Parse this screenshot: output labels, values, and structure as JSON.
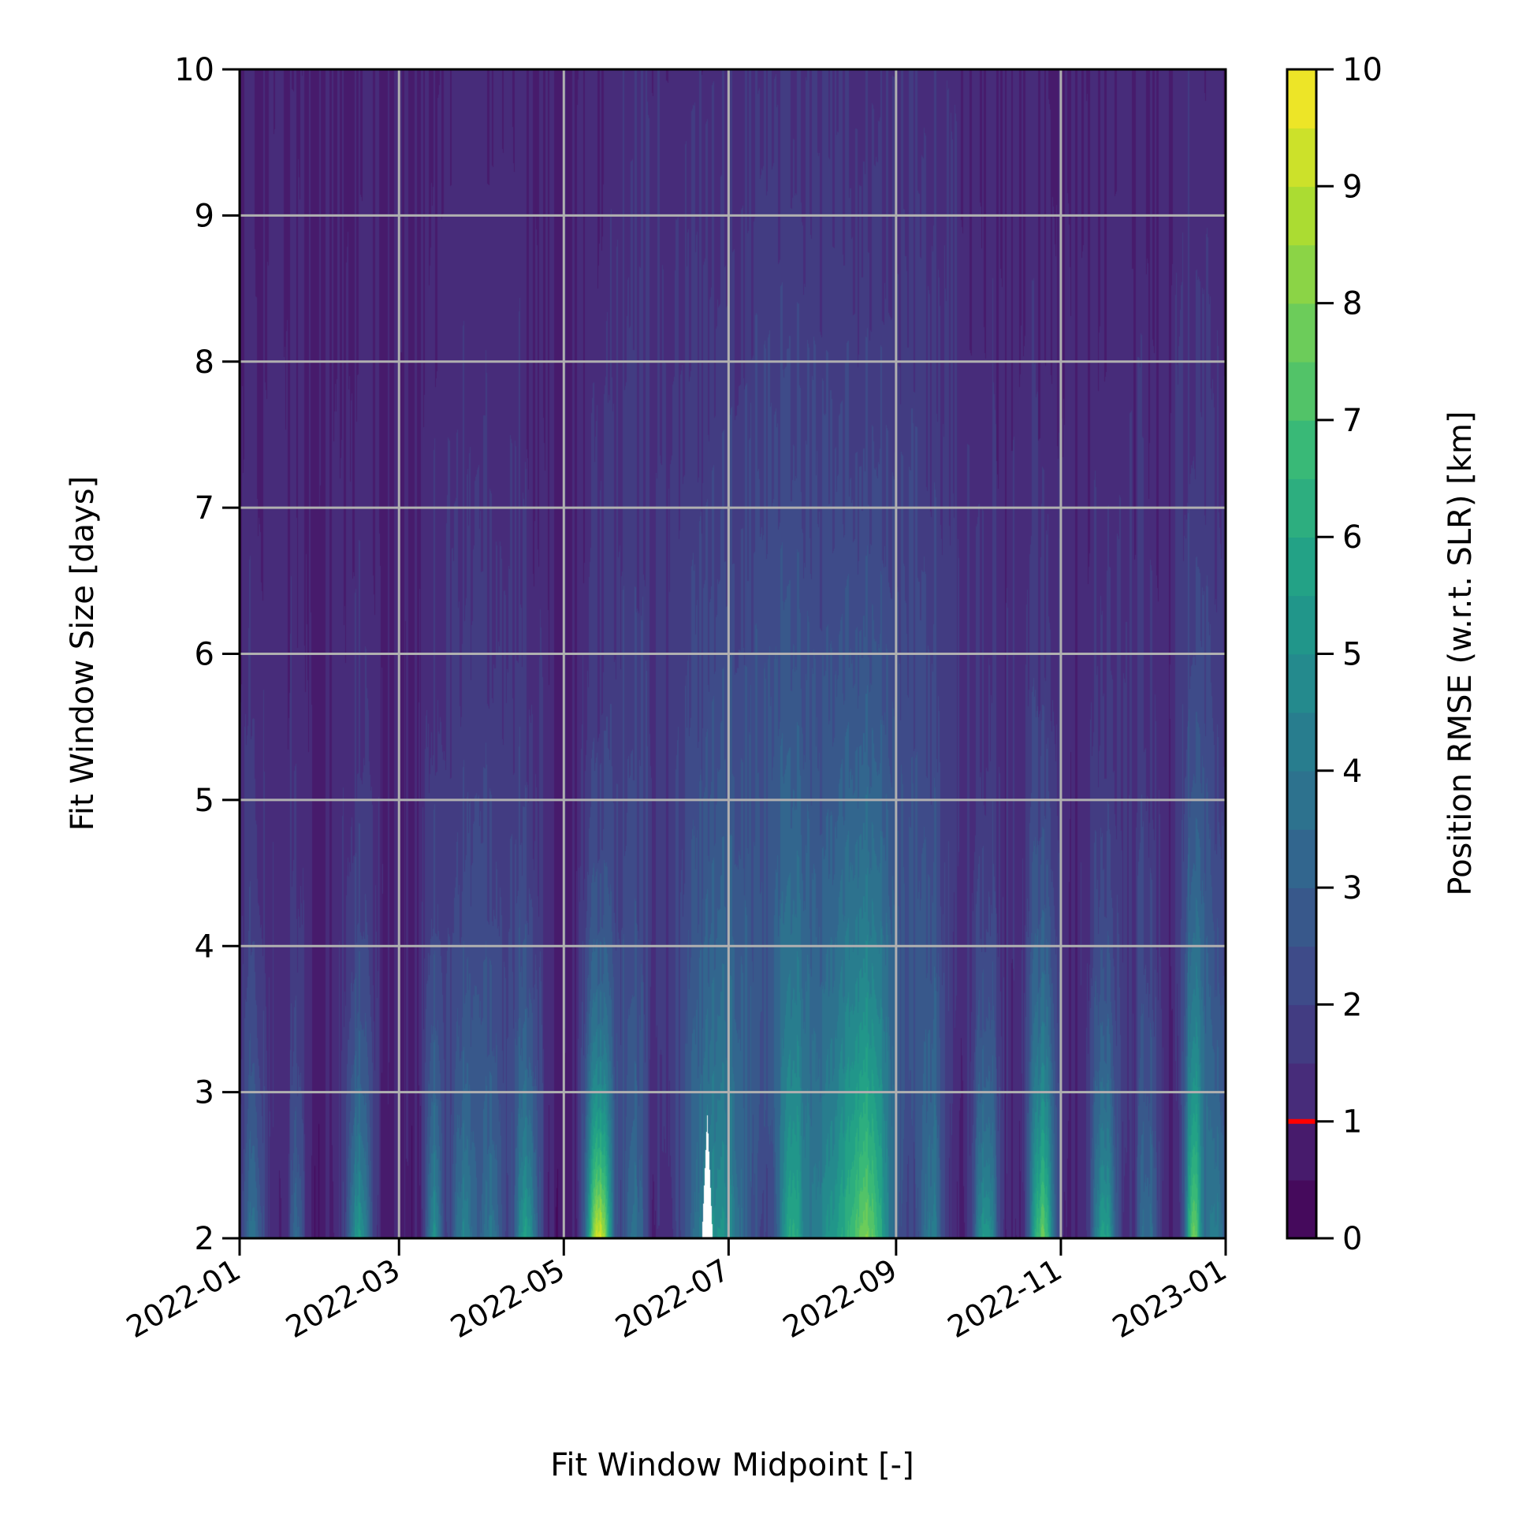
{
  "chart_data": {
    "type": "heatmap",
    "title": "",
    "xlabel": "Fit Window Midpoint [-]",
    "ylabel": "Fit Window Size [days]",
    "x_ticks": [
      "2022-01",
      "2022-03",
      "2022-05",
      "2022-07",
      "2022-09",
      "2022-11",
      "2023-01"
    ],
    "x_range": [
      "2022-01-01",
      "2023-01-01"
    ],
    "y_ticks": [
      "2",
      "3",
      "4",
      "5",
      "6",
      "7",
      "8",
      "9",
      "10"
    ],
    "ylim": [
      2,
      10
    ],
    "grid": true,
    "colorbar": {
      "label": "Position RMSE (w.r.t. SLR) [km]",
      "ticks": [
        "0",
        "1",
        "2",
        "3",
        "4",
        "5",
        "6",
        "7",
        "8",
        "9",
        "10"
      ],
      "range": [
        0,
        10
      ],
      "colormap": "viridis",
      "levels": 20,
      "marker_value": 1.0,
      "marker_color": "#ff0000"
    },
    "background_value": 0.8,
    "stripes": [
      {
        "date": "2022-01-06",
        "peak": 2.8,
        "decay": 1.5,
        "width": 3
      },
      {
        "date": "2022-01-22",
        "peak": 2.6,
        "decay": 1.2,
        "width": 2
      },
      {
        "date": "2022-02-14",
        "peak": 4.5,
        "decay": 1.3,
        "width": 3
      },
      {
        "date": "2022-03-14",
        "peak": 4.2,
        "decay": 1.4,
        "width": 2
      },
      {
        "date": "2022-03-25",
        "peak": 3.6,
        "decay": 1.5,
        "width": 3
      },
      {
        "date": "2022-04-04",
        "peak": 3.2,
        "decay": 1.8,
        "width": 3
      },
      {
        "date": "2022-04-17",
        "peak": 4.8,
        "decay": 1.4,
        "width": 3
      },
      {
        "date": "2022-05-14",
        "peak": 8.8,
        "decay": 1.2,
        "width": 3
      },
      {
        "date": "2022-05-27",
        "peak": 2.8,
        "decay": 2.0,
        "width": 3
      },
      {
        "date": "2022-06-27",
        "peak": 4.2,
        "decay": 2.8,
        "width": 8
      },
      {
        "date": "2022-07-24",
        "peak": 3.8,
        "decay": 1.6,
        "width": 3
      },
      {
        "date": "2022-08-12",
        "peak": 4.3,
        "decay": 2.5,
        "width": 12
      },
      {
        "date": "2022-08-22",
        "peak": 3.6,
        "decay": 2.0,
        "width": 5
      },
      {
        "date": "2022-09-14",
        "peak": 3.2,
        "decay": 1.8,
        "width": 3
      },
      {
        "date": "2022-10-04",
        "peak": 4.8,
        "decay": 1.3,
        "width": 3
      },
      {
        "date": "2022-10-25",
        "peak": 6.8,
        "decay": 1.6,
        "width": 3
      },
      {
        "date": "2022-11-17",
        "peak": 5.0,
        "decay": 1.4,
        "width": 3
      },
      {
        "date": "2022-12-03",
        "peak": 2.8,
        "decay": 1.8,
        "width": 3
      },
      {
        "date": "2022-12-20",
        "peak": 7.0,
        "decay": 1.8,
        "width": 2
      },
      {
        "date": "2022-12-28",
        "peak": 3.4,
        "decay": 2.0,
        "width": 3
      }
    ],
    "missing_data": {
      "date": "2022-06-23",
      "top_size": 2.85,
      "base_half_width_days": 2
    }
  }
}
